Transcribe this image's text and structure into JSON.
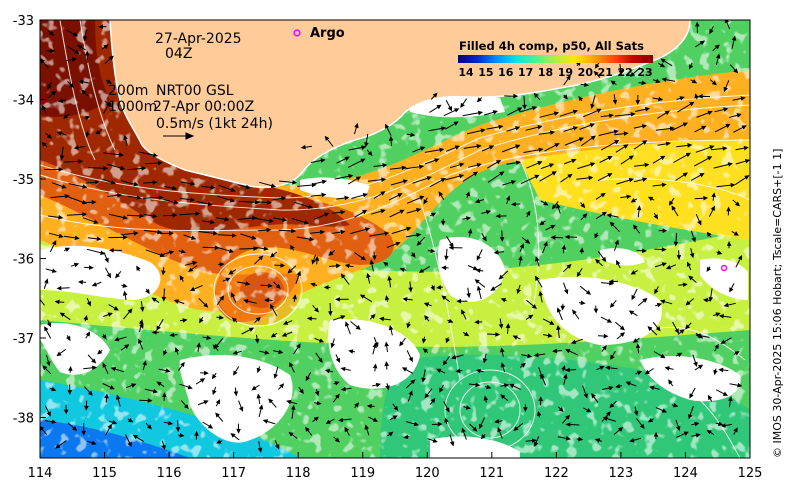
{
  "map": {
    "date": "27-Apr-2025",
    "hour": "04Z",
    "depth_200": "200m",
    "depth_1000": "1000m",
    "current_source": "NRT00 GSL",
    "current_time": "27-Apr 00:00Z",
    "vector_scale": "0.5m/s (1kt 24h)",
    "argo_label": "Argo",
    "x_ticks": [
      "114",
      "115",
      "116",
      "117",
      "118",
      "119",
      "120",
      "121",
      "122",
      "123",
      "124",
      "125"
    ],
    "y_ticks": [
      "-33",
      "-34",
      "-35",
      "-36",
      "-37",
      "-38"
    ],
    "credit": "© IMOS 30-Apr-2025 15:06 Hobart; Tscale=CARS+[-1 1]"
  },
  "colorbar": {
    "title": "Filled 4h comp, p50, All Sats",
    "ticks": [
      "14",
      "15",
      "16",
      "17",
      "18",
      "19",
      "20",
      "21",
      "22",
      "23"
    ],
    "colors": [
      "#00007f",
      "#0028c8",
      "#0090ff",
      "#10e0e8",
      "#50f090",
      "#b0f040",
      "#ffe800",
      "#ffa000",
      "#ff4800",
      "#c80000",
      "#800000"
    ]
  },
  "palette": {
    "land": "#ffcc99",
    "argo_marker": "#ff00ff",
    "contour": "#ffffff",
    "arrow": "#000000"
  }
}
